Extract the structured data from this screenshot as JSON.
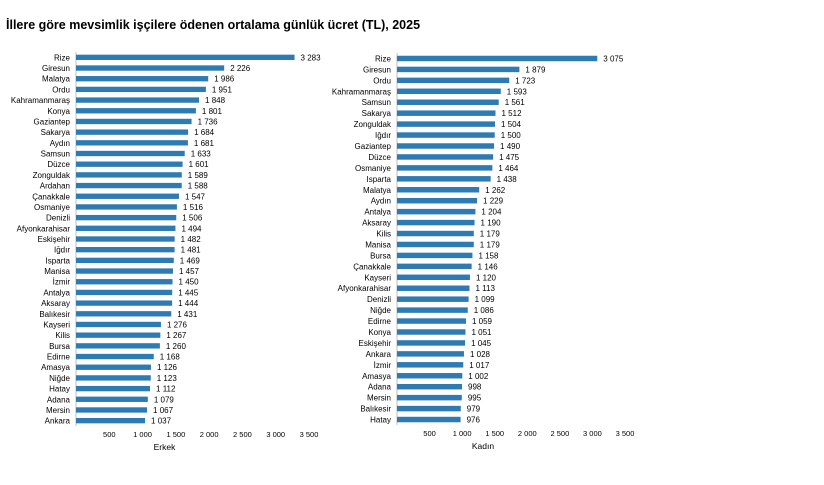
{
  "title": "İllere göre mevsimlik işçilere ödenen ortalama günlük ücret (TL), 2025",
  "chart_data": [
    {
      "type": "bar",
      "orientation": "horizontal",
      "xlabel": "Erkek",
      "xlim": [
        0,
        3500
      ],
      "xticks": [
        0,
        500,
        1000,
        1500,
        2000,
        2500,
        3000,
        3500
      ],
      "xtick_labels": [
        "",
        "500",
        "1 000",
        "1 500",
        "2 000",
        "2 500",
        "3 000",
        "3 500"
      ],
      "bar_color": "#2e7bb4",
      "categories": [
        "Rize",
        "Giresun",
        "Malatya",
        "Ordu",
        "Kahramanmaraş",
        "Konya",
        "Gaziantep",
        "Sakarya",
        "Aydın",
        "Samsun",
        "Düzce",
        "Zonguldak",
        "Ardahan",
        "Çanakkale",
        "Osmaniye",
        "Denizli",
        "Afyonkarahisar",
        "Eskişehir",
        "Iğdır",
        "Isparta",
        "Manisa",
        "İzmir",
        "Antalya",
        "Aksaray",
        "Balıkesir",
        "Kayseri",
        "Kilis",
        "Bursa",
        "Edirne",
        "Amasya",
        "Niğde",
        "Hatay",
        "Adana",
        "Mersin",
        "Ankara"
      ],
      "values": [
        3283,
        2226,
        1986,
        1951,
        1848,
        1801,
        1736,
        1684,
        1681,
        1633,
        1601,
        1589,
        1588,
        1547,
        1516,
        1506,
        1494,
        1482,
        1481,
        1469,
        1457,
        1450,
        1445,
        1444,
        1431,
        1276,
        1267,
        1260,
        1168,
        1126,
        1123,
        1112,
        1079,
        1067,
        1037
      ],
      "value_labels": [
        "3 283",
        "2 226",
        "1 986",
        "1 951",
        "1 848",
        "1 801",
        "1 736",
        "1 684",
        "1 681",
        "1 633",
        "1 601",
        "1 589",
        "1 588",
        "1 547",
        "1 516",
        "1 506",
        "1 494",
        "1 482",
        "1 481",
        "1 469",
        "1 457",
        "1 450",
        "1 445",
        "1 444",
        "1 431",
        "1 276",
        "1 267",
        "1 260",
        "1 168",
        "1 126",
        "1 123",
        "1 112",
        "1 079",
        "1 067",
        "1 037"
      ]
    },
    {
      "type": "bar",
      "orientation": "horizontal",
      "xlabel": "Kadın",
      "xlim": [
        0,
        3500
      ],
      "xticks": [
        0,
        500,
        1000,
        1500,
        2000,
        2500,
        3000,
        3500
      ],
      "xtick_labels": [
        "",
        "500",
        "1 000",
        "1 500",
        "2 000",
        "2 500",
        "3 000",
        "3 500"
      ],
      "bar_color": "#2e7bb4",
      "categories": [
        "Rize",
        "Giresun",
        "Ordu",
        "Kahramanmaraş",
        "Samsun",
        "Sakarya",
        "Zonguldak",
        "Iğdır",
        "Gaziantep",
        "Düzce",
        "Osmaniye",
        "Isparta",
        "Malatya",
        "Aydın",
        "Antalya",
        "Aksaray",
        "Kilis",
        "Manisa",
        "Bursa",
        "Çanakkale",
        "Kayseri",
        "Afyonkarahisar",
        "Denizli",
        "Niğde",
        "Edirne",
        "Konya",
        "Eskişehir",
        "Ankara",
        "İzmir",
        "Amasya",
        "Adana",
        "Mersin",
        "Balıkesir",
        "Hatay"
      ],
      "values": [
        3075,
        1879,
        1723,
        1593,
        1561,
        1512,
        1504,
        1500,
        1490,
        1475,
        1464,
        1438,
        1262,
        1229,
        1204,
        1190,
        1179,
        1179,
        1158,
        1146,
        1120,
        1113,
        1099,
        1086,
        1059,
        1051,
        1045,
        1028,
        1017,
        1002,
        998,
        995,
        979,
        976
      ],
      "value_labels": [
        "3 075",
        "1 879",
        "1 723",
        "1 593",
        "1 561",
        "1 512",
        "1 504",
        "1 500",
        "1 490",
        "1 475",
        "1 464",
        "1 438",
        "1 262",
        "1 229",
        "1 204",
        "1 190",
        "1 179",
        "1 179",
        "1 158",
        "1 146",
        "1 120",
        "1 113",
        "1 099",
        "1 086",
        "1 059",
        "1 051",
        "1 045",
        "1 028",
        "1 017",
        "1 002",
        "998",
        "995",
        "979",
        "976"
      ]
    }
  ]
}
